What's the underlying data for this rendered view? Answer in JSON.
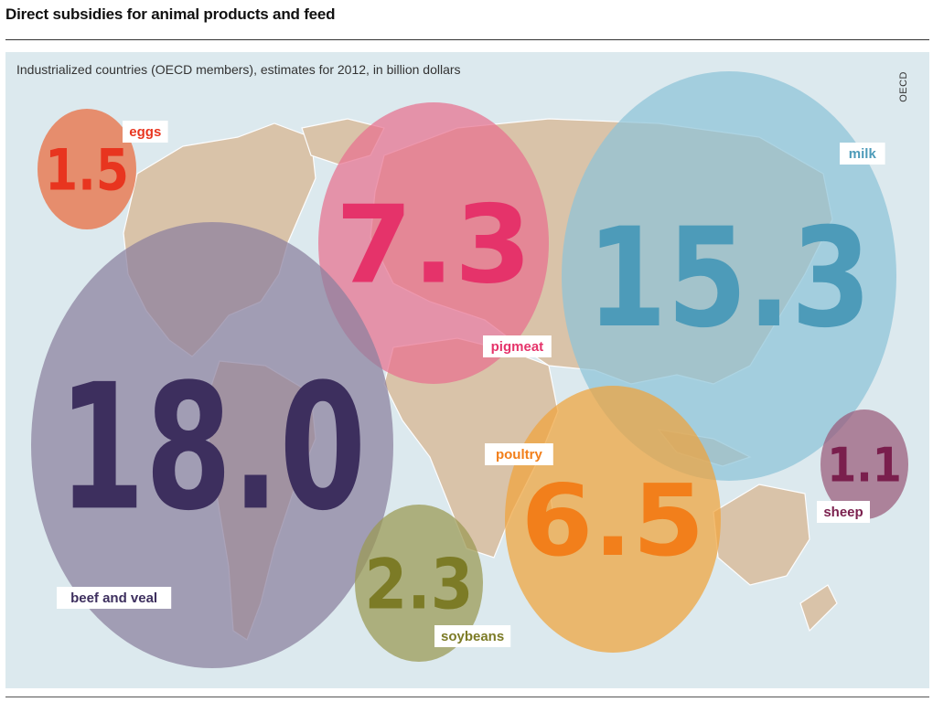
{
  "header": {
    "title": "Direct subsidies for animal products and feed",
    "subtitle": "Industrialized countries (OECD members), estimates for 2012, in billion dollars",
    "source": "OECD"
  },
  "chart_data": {
    "type": "bubble",
    "title": "Direct subsidies for animal products and feed",
    "subtitle": "Industrialized countries (OECD members), estimates for 2012, in billion dollars",
    "unit": "billion dollars",
    "series": [
      {
        "name": "eggs",
        "value": 1.5,
        "value_label": "1.5",
        "color": "#ea6a3c",
        "text_color": "#e8351f"
      },
      {
        "name": "pigmeat",
        "value": 7.3,
        "value_label": "7.3",
        "color": "#e8708f",
        "text_color": "#e5336a"
      },
      {
        "name": "milk",
        "value": 15.3,
        "value_label": "15.3",
        "color": "#8ec3d8",
        "text_color": "#4d9bb9"
      },
      {
        "name": "beef and veal",
        "value": 18.0,
        "value_label": "18.0",
        "color": "#8a7f9e",
        "text_color": "#3d2f5e"
      },
      {
        "name": "poultry",
        "value": 6.5,
        "value_label": "6.5",
        "color": "#f0a33c",
        "text_color": "#f27f1b"
      },
      {
        "name": "soybeans",
        "value": 2.3,
        "value_label": "2.3",
        "color": "#9a9952",
        "text_color": "#7c7b26"
      },
      {
        "name": "sheep",
        "value": 1.1,
        "value_label": "1.1",
        "color": "#9a5a7a",
        "text_color": "#7a1f4d"
      }
    ]
  }
}
